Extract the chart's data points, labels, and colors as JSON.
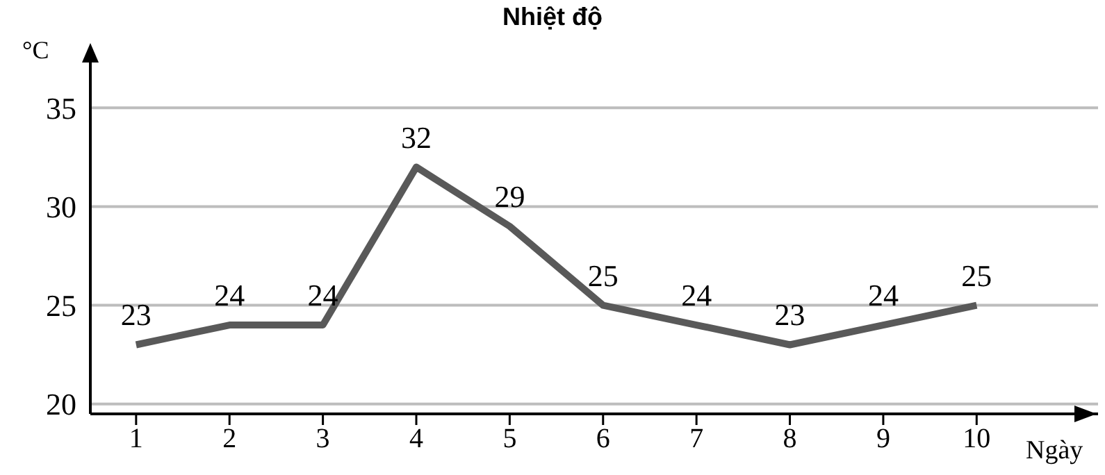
{
  "chart_data": {
    "type": "line",
    "title": "Nhiệt độ",
    "xlabel": "Ngày",
    "ylabel": "°C",
    "categories": [
      "1",
      "2",
      "3",
      "4",
      "5",
      "6",
      "7",
      "8",
      "9",
      "10"
    ],
    "series": [
      {
        "color": "#595959",
        "values": [
          23,
          24,
          24,
          32,
          29,
          25,
          24,
          23,
          24,
          25
        ]
      }
    ],
    "ylim": [
      19.5,
      38
    ],
    "yticks": [
      20,
      25,
      30,
      35
    ],
    "grid": "y",
    "data_labels": true,
    "marker": "none",
    "line_style": "solid"
  }
}
